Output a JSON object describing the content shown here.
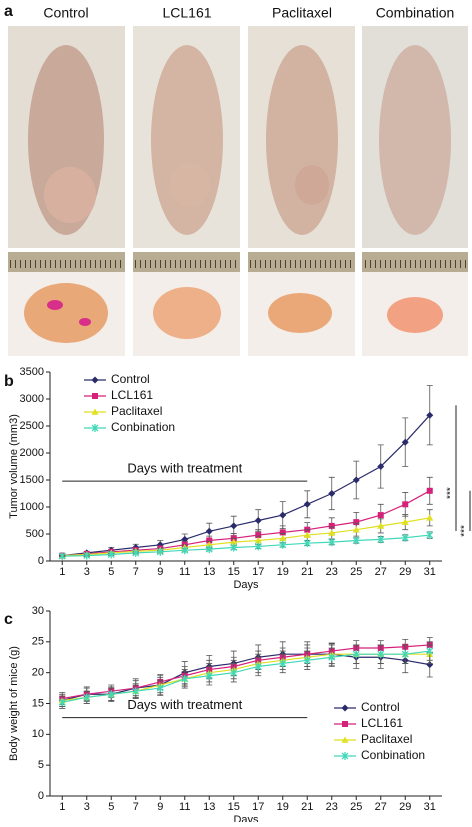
{
  "panel_a": {
    "label": "a",
    "columns": [
      "Control",
      "LCL161",
      "Paclitaxel",
      "Combination"
    ]
  },
  "chart_data": [
    {
      "type": "line",
      "label": "b",
      "ylabel": "Tumor volume (mm3)",
      "xlabel": "Days",
      "x": [
        1,
        3,
        5,
        7,
        9,
        11,
        13,
        15,
        17,
        19,
        21,
        23,
        25,
        27,
        29,
        31
      ],
      "xlim": [
        0,
        32
      ],
      "xticks": [
        1,
        3,
        5,
        7,
        9,
        11,
        13,
        15,
        17,
        19,
        21,
        23,
        25,
        27,
        29,
        31
      ],
      "ylim": [
        0,
        3500
      ],
      "yticks": [
        0,
        500,
        1000,
        1500,
        2000,
        2500,
        3000,
        3500
      ],
      "legend": "upper left",
      "annotation": {
        "text": "Days with treatment",
        "span": [
          1,
          21
        ],
        "y": 1480
      },
      "significance": [
        "***",
        "***"
      ],
      "series": [
        {
          "name": "Control",
          "color": "#2b2b6b",
          "marker": "diamond",
          "values": [
            100,
            150,
            200,
            250,
            300,
            400,
            550,
            650,
            750,
            850,
            1050,
            1250,
            1500,
            1750,
            2200,
            2700
          ],
          "errors": [
            20,
            30,
            50,
            60,
            80,
            100,
            150,
            180,
            200,
            250,
            250,
            300,
            350,
            400,
            450,
            550
          ]
        },
        {
          "name": "LCL161",
          "color": "#d6217b",
          "marker": "square",
          "values": [
            100,
            130,
            170,
            200,
            230,
            300,
            380,
            420,
            480,
            530,
            580,
            650,
            720,
            850,
            1050,
            1300
          ],
          "errors": [
            15,
            20,
            30,
            40,
            50,
            60,
            80,
            90,
            100,
            120,
            130,
            150,
            180,
            200,
            220,
            250
          ]
        },
        {
          "name": "Paclitaxel",
          "color": "#e0e020",
          "marker": "triangle",
          "values": [
            100,
            120,
            150,
            180,
            200,
            250,
            300,
            350,
            380,
            420,
            480,
            520,
            580,
            650,
            720,
            800
          ],
          "errors": [
            15,
            20,
            25,
            30,
            40,
            50,
            60,
            70,
            80,
            90,
            100,
            110,
            120,
            130,
            140,
            150
          ]
        },
        {
          "name": "Conbination",
          "color": "#40d8b8",
          "marker": "cross",
          "values": [
            90,
            100,
            120,
            150,
            170,
            200,
            220,
            250,
            270,
            300,
            330,
            350,
            380,
            400,
            430,
            480
          ],
          "errors": [
            10,
            15,
            20,
            20,
            25,
            30,
            30,
            35,
            40,
            40,
            45,
            50,
            50,
            55,
            55,
            60
          ]
        }
      ]
    },
    {
      "type": "line",
      "label": "c",
      "ylabel": "Body weight of mice (g)",
      "xlabel": "Days",
      "x": [
        1,
        3,
        5,
        7,
        9,
        11,
        13,
        15,
        17,
        19,
        21,
        23,
        25,
        27,
        29,
        31
      ],
      "xlim": [
        0,
        32
      ],
      "xticks": [
        1,
        3,
        5,
        7,
        9,
        11,
        13,
        15,
        17,
        19,
        21,
        23,
        25,
        27,
        29,
        31
      ],
      "ylim": [
        0,
        30
      ],
      "yticks": [
        0,
        5,
        10,
        15,
        20,
        25,
        30
      ],
      "legend": "lower right",
      "annotation": {
        "text": "Days with treatment",
        "span": [
          1,
          21
        ],
        "y": 12.7
      },
      "series": [
        {
          "name": "Control",
          "color": "#2b2b6b",
          "marker": "diamond",
          "values": [
            15.5,
            16.5,
            16.5,
            17.5,
            18,
            20,
            21,
            21.5,
            22.5,
            23,
            23,
            23,
            22.5,
            22.5,
            22,
            21.3
          ],
          "errors": [
            1,
            1.2,
            1.2,
            1.5,
            1.5,
            1.8,
            1.8,
            2,
            2,
            2,
            2,
            1.8,
            1.8,
            1.8,
            2,
            2
          ]
        },
        {
          "name": "LCL161",
          "color": "#d6217b",
          "marker": "square",
          "values": [
            15.8,
            16.5,
            17,
            17.5,
            18.5,
            19.5,
            20.5,
            21,
            22,
            22.5,
            23,
            23.5,
            24,
            24,
            24.2,
            24.5
          ],
          "errors": [
            1,
            1,
            1,
            1.2,
            1.2,
            1.5,
            1.5,
            1.5,
            1.5,
            1.5,
            1.5,
            1.2,
            1.2,
            1.2,
            1.2,
            1.2
          ]
        },
        {
          "name": "Paclitaxel",
          "color": "#e0e020",
          "marker": "triangle",
          "values": [
            15.5,
            16,
            16.5,
            17,
            18,
            19,
            20,
            20.5,
            21.5,
            22,
            22.5,
            23,
            23,
            23,
            23,
            23
          ],
          "errors": [
            1,
            1,
            1,
            1.2,
            1.2,
            1.5,
            1.5,
            1.5,
            1.5,
            1.5,
            1.5,
            1.5,
            1.5,
            1.5,
            1.5,
            1.5
          ]
        },
        {
          "name": "Conbination",
          "color": "#40d8b8",
          "marker": "cross",
          "values": [
            15.2,
            16,
            16.5,
            17,
            17.5,
            19,
            19.5,
            20,
            21,
            21.5,
            22,
            22.5,
            23,
            23,
            23,
            23.5
          ],
          "errors": [
            1,
            1,
            1,
            1,
            1.2,
            1.2,
            1.5,
            1.5,
            1.5,
            1.5,
            1.5,
            1.5,
            1.5,
            1.5,
            1.5,
            1.5
          ]
        }
      ]
    }
  ]
}
